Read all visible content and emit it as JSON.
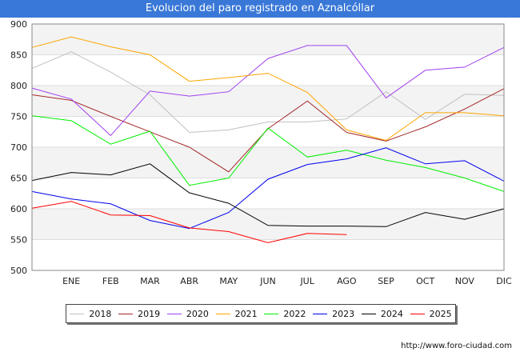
{
  "title": "Evolucion del paro registrado en Aznalcóllar",
  "source": "http://www.foro-ciudad.com",
  "chart_data": {
    "type": "line",
    "categories": [
      "",
      "ENE",
      "FEB",
      "MAR",
      "ABR",
      "MAY",
      "JUN",
      "JUL",
      "AGO",
      "SEP",
      "OCT",
      "NOV",
      "DIC"
    ],
    "ylim": [
      500,
      900
    ],
    "yticks": [
      500,
      550,
      600,
      650,
      700,
      750,
      800,
      850,
      900
    ],
    "grid": true,
    "legend_position": "bottom",
    "series": [
      {
        "name": "2018",
        "color": "#c0c0c0",
        "values": [
          828,
          855,
          822,
          785,
          724,
          728,
          741,
          741,
          746,
          790,
          745,
          786,
          784
        ]
      },
      {
        "name": "2019",
        "color": "#a52a2a",
        "values": [
          785,
          776,
          750,
          725,
          700,
          660,
          730,
          775,
          724,
          710,
          733,
          762,
          795
        ]
      },
      {
        "name": "2020",
        "color": "#a040f0",
        "values": [
          796,
          778,
          719,
          791,
          783,
          790,
          844,
          865,
          865,
          780,
          825,
          830,
          862
        ]
      },
      {
        "name": "2021",
        "color": "#ffa500",
        "values": [
          862,
          879,
          863,
          850,
          807,
          813,
          820,
          789,
          728,
          711,
          756,
          756,
          751
        ]
      },
      {
        "name": "2022",
        "color": "#00ee00",
        "values": [
          751,
          743,
          705,
          726,
          638,
          650,
          731,
          684,
          695,
          679,
          667,
          650,
          628
        ]
      },
      {
        "name": "2023",
        "color": "#0000ee",
        "values": [
          628,
          616,
          608,
          581,
          568,
          594,
          648,
          672,
          681,
          699,
          673,
          678,
          645
        ]
      },
      {
        "name": "2024",
        "color": "#000000",
        "values": [
          646,
          659,
          655,
          673,
          626,
          609,
          573,
          572,
          572,
          571,
          594,
          583,
          600
        ]
      },
      {
        "name": "2025",
        "color": "#ff0000",
        "values": [
          601,
          612,
          590,
          589,
          569,
          563,
          545,
          560,
          558,
          null,
          null,
          null,
          null
        ]
      }
    ]
  }
}
